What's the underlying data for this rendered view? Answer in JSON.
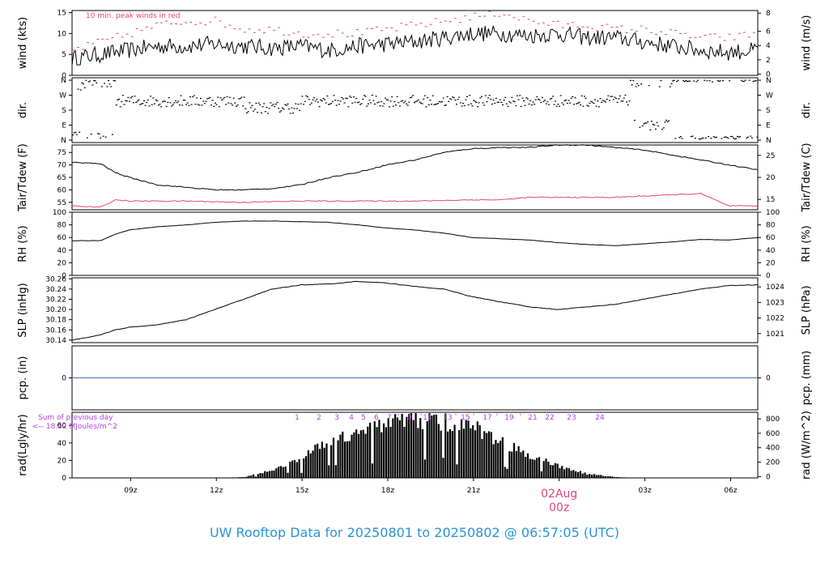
{
  "page": {
    "title_prefix": "UW Rooftop Data for",
    "date_from": "20250801",
    "to_word": "to",
    "date_to": "20250802",
    "at_time": "@ 06:57:05",
    "zone": "(UTC)"
  },
  "colors": {
    "axis": "#000000",
    "data": "#000000",
    "peak_wind": "#e0457a",
    "dewpoint": "#e0457a",
    "precip": "#4472c4",
    "rad_note": "#b040e0",
    "title": "#2b93d6",
    "date_marker": "#e0457a"
  },
  "chart_data": [
    {
      "type": "line",
      "panel": "wind",
      "ylabel_left": "wind (kts)",
      "ylabel_right": "wind (m/s)",
      "note": "10 min. peak winds in red",
      "yticks_left": [
        "0",
        "5",
        "10",
        "15"
      ],
      "yticks_right": [
        "0",
        "2",
        "4",
        "6",
        "8"
      ],
      "ylim": [
        0,
        15.5
      ],
      "series": [
        {
          "x": [
            0,
            1,
            2,
            3,
            4,
            5,
            6,
            7,
            8,
            9,
            10,
            11,
            12,
            13,
            14,
            15,
            16,
            17,
            18,
            19,
            20,
            21,
            22,
            23,
            24
          ],
          "values": [
            4,
            5,
            6,
            7,
            7,
            7.5,
            7,
            6.5,
            7,
            6,
            7,
            7.5,
            8,
            9,
            10,
            10,
            9.5,
            10,
            9,
            9,
            8,
            7,
            6,
            5.5,
            6
          ]
        },
        {
          "name": "peak",
          "x": [
            0,
            1,
            2,
            3,
            4,
            5,
            6,
            7,
            8,
            9,
            10,
            11,
            12,
            13,
            14,
            15,
            16,
            17,
            18,
            19,
            20,
            21,
            22,
            23,
            24
          ],
          "values": [
            6,
            8,
            10,
            12,
            13,
            13,
            11,
            11,
            10,
            10,
            10,
            11,
            12,
            13,
            14,
            15,
            13,
            12,
            12,
            11,
            11,
            10,
            9,
            9,
            10
          ]
        }
      ]
    },
    {
      "type": "scatter",
      "panel": "direction",
      "ylabel_left": "dir.",
      "ylabel_right": "dir.",
      "yticks_left": [
        "N",
        "E",
        "S",
        "W",
        "N"
      ],
      "yticks_right": [
        "N",
        "E",
        "S",
        "W",
        "N"
      ],
      "ylim": [
        0,
        360
      ]
    },
    {
      "type": "line",
      "panel": "temperature",
      "ylabel_left": "Tair/Tdew (F)",
      "ylabel_right": "Tair/Tdew (C)",
      "yticks_left": [
        "55",
        "60",
        "65",
        "70",
        "75"
      ],
      "yticks_right": [
        "15",
        "20",
        "25"
      ],
      "ylim": [
        52,
        78
      ],
      "series": [
        {
          "x": [
            0,
            1,
            1.5,
            2,
            3,
            4,
            5,
            6,
            7,
            8,
            9,
            10,
            11,
            12,
            13,
            14,
            15,
            16,
            17,
            18,
            19,
            20,
            21,
            22,
            23,
            24
          ],
          "values": [
            71,
            70.5,
            67,
            65,
            62,
            61,
            60,
            60,
            60.5,
            62,
            65,
            67,
            70,
            72,
            75,
            76.5,
            77,
            77,
            78,
            78,
            77,
            76,
            74,
            72,
            70,
            68
          ]
        },
        {
          "name": "dewpoint",
          "x": [
            0,
            1,
            1.5,
            2,
            4,
            6,
            8,
            10,
            12,
            14,
            15,
            16,
            18,
            19,
            20,
            21,
            22,
            22.5,
            23,
            24
          ],
          "values": [
            53.5,
            53,
            56,
            55.5,
            55.5,
            55,
            55.5,
            55.5,
            55.5,
            56,
            56,
            57,
            57,
            57,
            57.5,
            58,
            58.5,
            56,
            53.5,
            53.5
          ]
        }
      ]
    },
    {
      "type": "line",
      "panel": "humidity",
      "ylabel_left": "RH (%)",
      "ylabel_right": "RH (%)",
      "yticks_left": [
        "0",
        "20",
        "40",
        "60",
        "80",
        "100"
      ],
      "yticks_right": [
        "0",
        "20",
        "40",
        "60",
        "80",
        "100"
      ],
      "ylim": [
        0,
        100
      ],
      "series": [
        {
          "x": [
            0,
            1,
            1.5,
            2,
            3,
            4,
            5,
            6,
            7,
            8,
            9,
            10,
            11,
            12,
            13,
            14,
            15,
            16,
            17,
            18,
            19,
            20,
            21,
            22,
            23,
            24
          ],
          "values": [
            55,
            55,
            65,
            72,
            77,
            80,
            84,
            86,
            86,
            85,
            84,
            80,
            75,
            72,
            67,
            60,
            58,
            56,
            52,
            49,
            47,
            50,
            53,
            57,
            56,
            60
          ]
        }
      ]
    },
    {
      "type": "line",
      "panel": "pressure",
      "ylabel_left": "SLP (inHg)",
      "ylabel_right": "SLP (hPa)",
      "yticks_left": [
        "30.14",
        "30.16",
        "30.18",
        "30.20",
        "30.22",
        "30.24",
        "30.26"
      ],
      "yticks_right": [
        "1021",
        "1022",
        "1023",
        "1024"
      ],
      "ylim": [
        30.135,
        30.262
      ],
      "series": [
        {
          "x": [
            0,
            1,
            1.5,
            2,
            3,
            4,
            5,
            6,
            7,
            8,
            9,
            10,
            11,
            12,
            13,
            14,
            15,
            16,
            17,
            18,
            19,
            20,
            21,
            22,
            23,
            24
          ],
          "values": [
            30.14,
            30.15,
            30.16,
            30.165,
            30.17,
            30.18,
            30.2,
            30.22,
            30.24,
            30.248,
            30.25,
            30.255,
            30.252,
            30.245,
            30.24,
            30.225,
            30.215,
            30.205,
            30.2,
            30.205,
            30.21,
            30.22,
            30.23,
            30.24,
            30.247,
            30.248
          ]
        }
      ]
    },
    {
      "type": "line",
      "panel": "precipitation",
      "ylabel_left": "pcp. (in)",
      "ylabel_right": "pcp. (mm)",
      "yticks_left": [
        "0"
      ],
      "yticks_right": [
        "0"
      ],
      "series": [
        {
          "x": [
            0,
            24
          ],
          "values": [
            0,
            0
          ]
        }
      ]
    },
    {
      "type": "area",
      "panel": "radiation",
      "ylabel_left": "rad(Lgly/hr)",
      "ylabel_right": "rad (W/m^2)",
      "yticks_left": [
        "0",
        "20",
        "40",
        "60"
      ],
      "yticks_right": [
        "0",
        "200",
        "400",
        "600",
        "800"
      ],
      "ylim": [
        0,
        75
      ],
      "note_line1": "Sum of previous day",
      "note_line2": "<-- 18.32 MJoules/m^2",
      "hour_labels": [
        "1",
        "2",
        "3",
        "4",
        "5",
        "6",
        "7",
        "8",
        "9",
        "10",
        "11",
        "12",
        "13",
        "14",
        "15",
        "16",
        "17",
        "18",
        "19",
        "20",
        "21",
        "22",
        "23",
        "24"
      ],
      "series": [
        {
          "x": [
            0,
            5,
            6,
            7,
            8,
            9,
            10,
            11,
            12,
            13,
            14,
            15,
            16,
            17,
            18,
            19,
            20,
            24
          ],
          "values": [
            0,
            0,
            1,
            10,
            25,
            45,
            60,
            68,
            72,
            70,
            62,
            45,
            28,
            15,
            5,
            1,
            0,
            0
          ]
        }
      ]
    }
  ],
  "time_axis": {
    "ticks": [
      "09z",
      "12z",
      "15z",
      "18z",
      "21z",
      "03z",
      "06z"
    ],
    "day_label": "02Aug",
    "day_time": "00z"
  }
}
